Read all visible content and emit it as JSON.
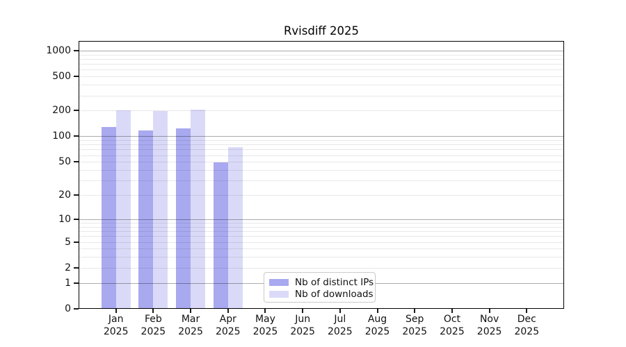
{
  "chart_data": {
    "type": "bar",
    "title": "Rvisdiff 2025",
    "x_tick_labels": [
      {
        "month": "Jan",
        "year": "2025"
      },
      {
        "month": "Feb",
        "year": "2025"
      },
      {
        "month": "Mar",
        "year": "2025"
      },
      {
        "month": "Apr",
        "year": "2025"
      },
      {
        "month": "May",
        "year": "2025"
      },
      {
        "month": "Jun",
        "year": "2025"
      },
      {
        "month": "Jul",
        "year": "2025"
      },
      {
        "month": "Aug",
        "year": "2025"
      },
      {
        "month": "Sep",
        "year": "2025"
      },
      {
        "month": "Oct",
        "year": "2025"
      },
      {
        "month": "Nov",
        "year": "2025"
      },
      {
        "month": "Dec",
        "year": "2025"
      }
    ],
    "series": [
      {
        "name": "Nb of distinct IPs",
        "color": "#a9a9f0",
        "values": [
          128,
          118,
          124,
          49,
          0,
          0,
          0,
          0,
          0,
          0,
          0,
          0
        ]
      },
      {
        "name": "Nb of downloads",
        "color": "#dadaf8",
        "values": [
          200,
          196,
          206,
          75,
          0,
          0,
          0,
          0,
          0,
          0,
          0,
          0
        ]
      }
    ],
    "y_axis": {
      "scale": "log10(value+1)",
      "tick_values": [
        0,
        1,
        2,
        5,
        10,
        20,
        50,
        100,
        200,
        500,
        1000
      ],
      "tick_labels": [
        "0",
        "1",
        "2",
        "5",
        "10",
        "20",
        "50",
        "100",
        "200",
        "500",
        "1000"
      ],
      "major_gridlines": [
        1,
        10,
        100,
        1000
      ],
      "minor_gridlines": [
        2,
        3,
        4,
        5,
        6,
        7,
        8,
        9,
        20,
        30,
        40,
        50,
        60,
        70,
        80,
        90,
        200,
        300,
        400,
        500,
        600,
        700,
        800,
        900
      ],
      "ylim": [
        0,
        1300
      ]
    },
    "xlabel": "",
    "ylabel": "",
    "grid": true,
    "legend_position": "lower-center",
    "colors": {
      "background": "#ffffff",
      "axis": "#000000",
      "major_grid": "rgba(0,0,0,0.33)",
      "minor_grid": "rgba(0,0,0,0.09)"
    }
  }
}
